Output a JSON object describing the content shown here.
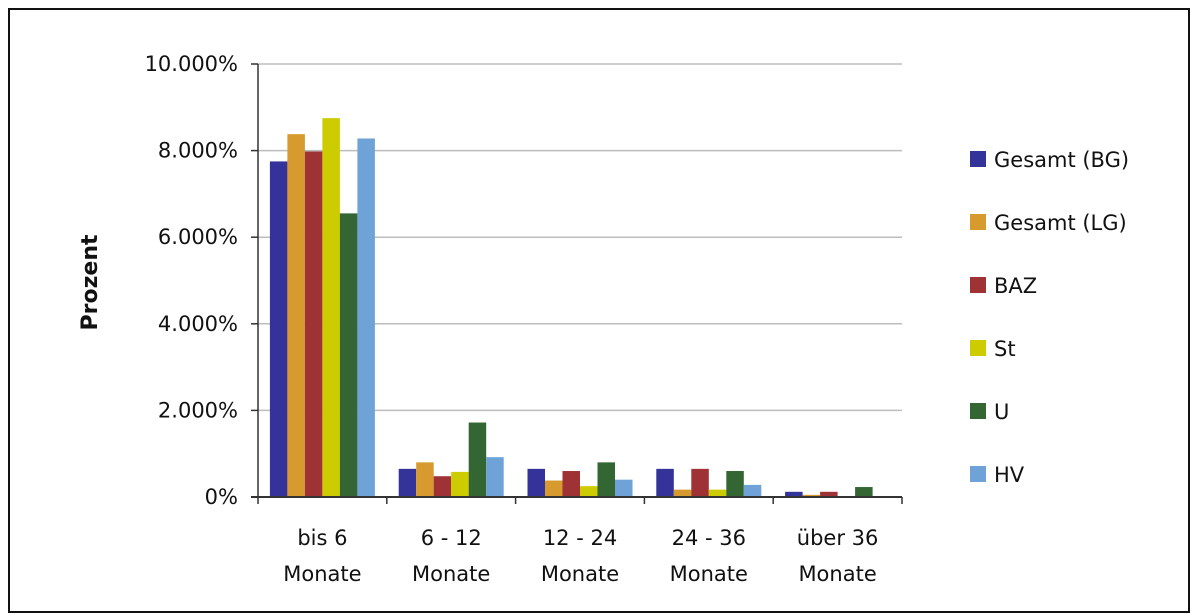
{
  "chart_data": {
    "type": "bar",
    "title": "",
    "xlabel": "",
    "ylabel": "Prozent",
    "ylim": [
      0,
      10000
    ],
    "yticks": [
      0,
      2000,
      4000,
      6000,
      8000,
      10000
    ],
    "ytick_labels": [
      "0%",
      "2.000%",
      "4.000%",
      "6.000%",
      "8.000%",
      "10.000%"
    ],
    "grid": true,
    "legend_position": "right",
    "categories": [
      [
        "bis 6",
        "Monate"
      ],
      [
        "6 - 12",
        "Monate"
      ],
      [
        "12 - 24",
        "Monate"
      ],
      [
        "24 - 36",
        "Monate"
      ],
      [
        "über 36",
        "Monate"
      ]
    ],
    "series": [
      {
        "name": "Gesamt (BG)",
        "color": "#333399",
        "values": [
          7750,
          650,
          650,
          650,
          120
        ]
      },
      {
        "name": "Gesamt (LG)",
        "color": "#D69A2E",
        "values": [
          8380,
          800,
          380,
          170,
          50
        ]
      },
      {
        "name": "BAZ",
        "color": "#9E3234",
        "values": [
          7980,
          480,
          600,
          650,
          120
        ]
      },
      {
        "name": "St",
        "color": "#CCCC00",
        "values": [
          8750,
          580,
          250,
          170,
          0
        ]
      },
      {
        "name": "U",
        "color": "#336633",
        "values": [
          6550,
          1720,
          800,
          600,
          230
        ]
      },
      {
        "name": "HV",
        "color": "#6FA3D8",
        "values": [
          8280,
          920,
          400,
          280,
          0
        ]
      }
    ]
  }
}
